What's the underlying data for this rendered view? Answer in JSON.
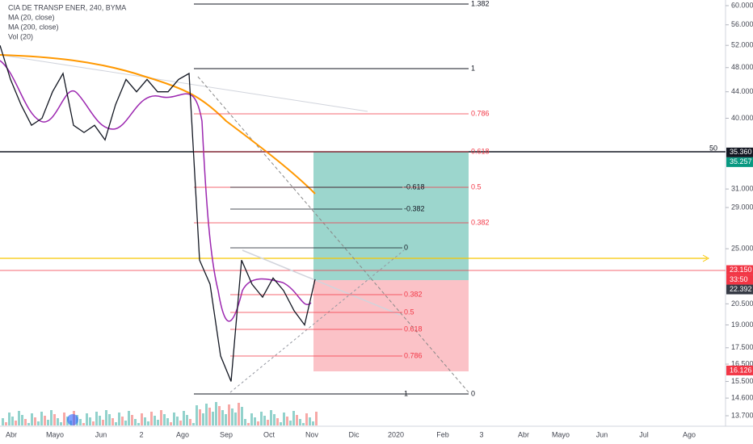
{
  "header": {
    "symbol": "CIA DE TRANSP ENER, 240, BYMA",
    "studies": [
      "MA (20, close)",
      "MA (200, close)",
      "Vol (20)"
    ]
  },
  "price_axis": {
    "scale": "log",
    "ylim": [
      13.7,
      60
    ],
    "yticks": [
      {
        "value": 60,
        "label": "60.000"
      },
      {
        "value": 56,
        "label": "56.000"
      },
      {
        "value": 52,
        "label": "52.000"
      },
      {
        "value": 48,
        "label": "48.000"
      },
      {
        "value": 44,
        "label": "44.000"
      },
      {
        "value": 40,
        "label": "40.000"
      },
      {
        "value": 31,
        "label": "31.000"
      },
      {
        "value": 29,
        "label": "29.000"
      },
      {
        "value": 25,
        "label": "25.000"
      },
      {
        "value": 20.5,
        "label": "20.500"
      },
      {
        "value": 19,
        "label": "19.000"
      },
      {
        "value": 17.5,
        "label": "17.500"
      },
      {
        "value": 16.5,
        "label": "16.500"
      },
      {
        "value": 15.5,
        "label": "15.500"
      },
      {
        "value": 14.6,
        "label": "14.600"
      },
      {
        "value": 13.7,
        "label": "13.700"
      }
    ],
    "tags": [
      {
        "value": 35.36,
        "label": "35.360",
        "color": "#131722"
      },
      {
        "value": 35.257,
        "label": "35.257",
        "color": "#089981"
      },
      {
        "value": 23.15,
        "label": "23.150",
        "color": "#f23645"
      },
      {
        "label": "33:50",
        "color": "#f23645"
      },
      {
        "value": 22.392,
        "label": "22.392",
        "color": "#363a45"
      },
      {
        "value": 16.126,
        "label": "16.126",
        "color": "#f23645"
      }
    ],
    "level_note": "50"
  },
  "time_axis": {
    "labels": [
      "Abr",
      "Mayo",
      "Jun",
      "2",
      "Ago",
      "Sep",
      "Oct",
      "Nov",
      "Dic",
      "2020",
      "Feb",
      "3",
      "Abr",
      "Mayo",
      "Jun",
      "Jul",
      "Ago"
    ]
  },
  "fib_big": {
    "levels": [
      "1.382",
      "1",
      "0.786",
      "0.618",
      "0.5",
      "0.382",
      "0"
    ]
  },
  "fib_small": {
    "levels": [
      "-0.618",
      "-0.382",
      "0",
      "0.382",
      "0.5",
      "0.618",
      "0.786",
      "1"
    ]
  },
  "price": {
    "color": "#131722",
    "closes": [
      52,
      46,
      42,
      39,
      40,
      44,
      47,
      39,
      38,
      39,
      37,
      42,
      46,
      44,
      46,
      44,
      44,
      46,
      47,
      24,
      22,
      17,
      15.5,
      24,
      22,
      21,
      22.5,
      21.5,
      20,
      19,
      22.4
    ]
  }
}
